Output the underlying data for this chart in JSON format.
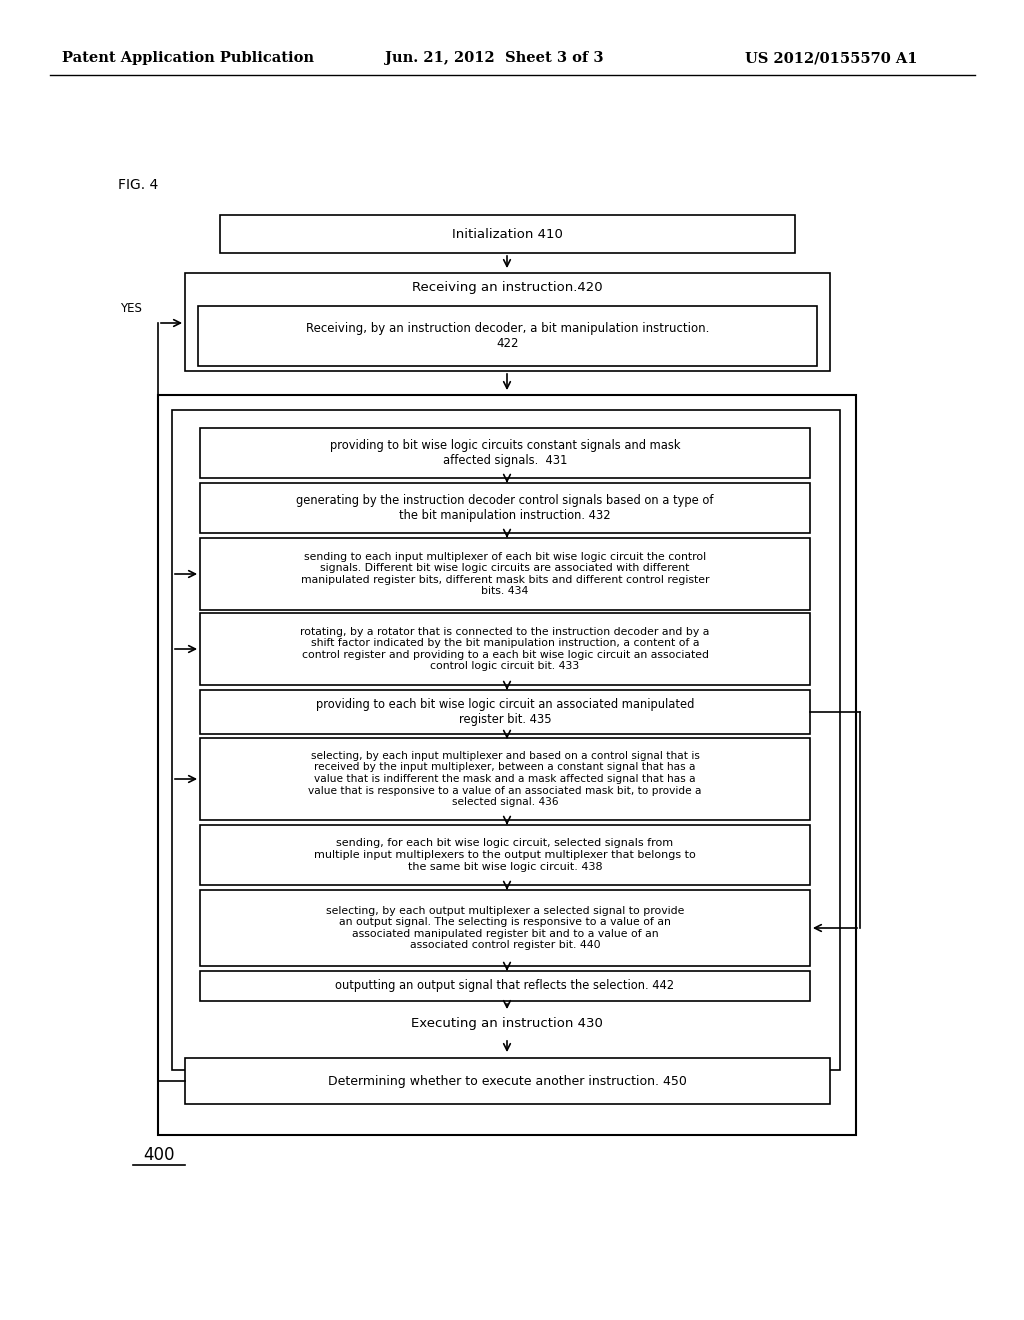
{
  "header_left": "Patent Application Publication",
  "header_mid": "Jun. 21, 2012  Sheet 3 of 3",
  "header_right": "US 2012/0155570 A1",
  "fig_label": "FIG. 4",
  "footer_label": "400",
  "background_color": "#ffffff",
  "yes_label": "YES"
}
